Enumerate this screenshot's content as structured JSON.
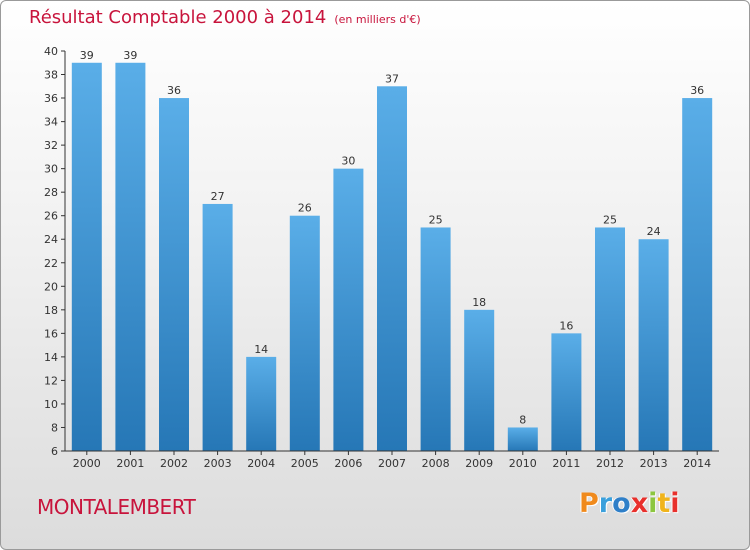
{
  "chart_data": {
    "type": "bar",
    "title": "Résultat Comptable 2000 à 2014",
    "subtitle": "(en milliers d'€)",
    "categories": [
      "2000",
      "2001",
      "2002",
      "2003",
      "2004",
      "2005",
      "2006",
      "2007",
      "2008",
      "2009",
      "2010",
      "2011",
      "2012",
      "2013",
      "2014"
    ],
    "values": [
      39,
      39,
      36,
      27,
      14,
      26,
      30,
      37,
      25,
      18,
      8,
      16,
      25,
      24,
      36
    ],
    "ylim": [
      6,
      40
    ],
    "yticks": [
      6,
      8,
      10,
      12,
      14,
      16,
      18,
      20,
      22,
      24,
      26,
      28,
      30,
      32,
      34,
      36,
      38,
      40
    ],
    "grid": false,
    "xlabel": "",
    "ylabel": "",
    "bar_color_top": "#5aaee8",
    "bar_color_bottom": "#2677b6"
  },
  "commune": "MONTALEMBERT",
  "brand": {
    "text": "Proxiti",
    "colors": [
      "#f08a1c",
      "#3aa0dc",
      "#2f7fc8",
      "#e8302c",
      "#8cc63f",
      "#f0b41c",
      "#e8302c"
    ]
  },
  "colors": {
    "title": "#c8143c",
    "axis": "#333333"
  }
}
